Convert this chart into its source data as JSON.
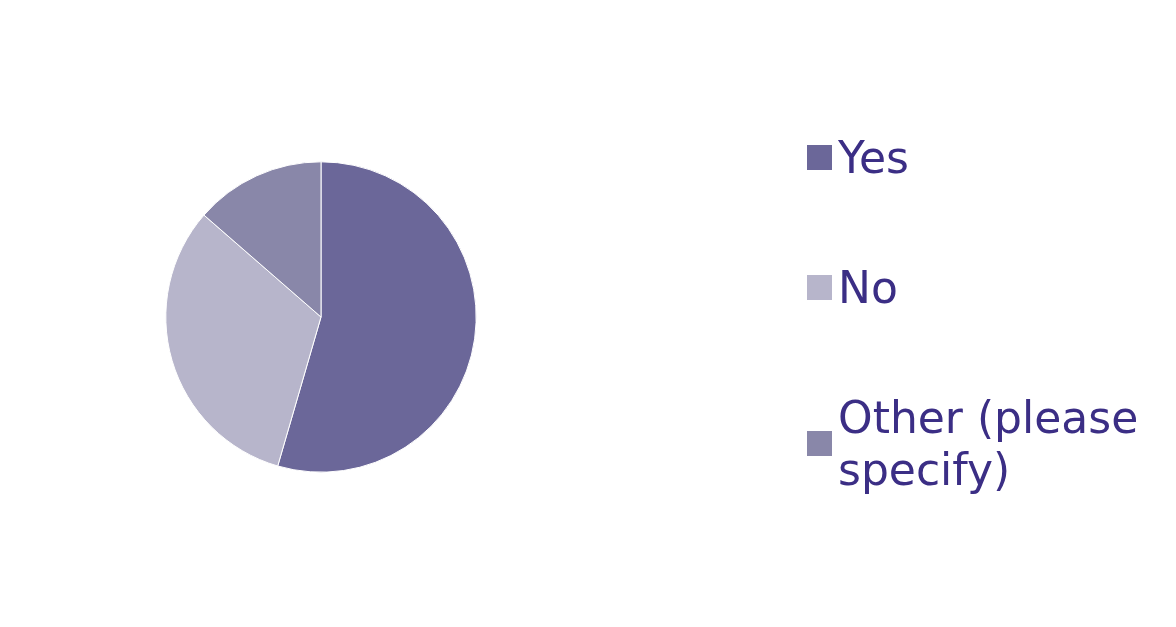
{
  "chart_data": {
    "type": "pie",
    "categories": [
      "Yes",
      "No",
      "Other (please specify)"
    ],
    "values": [
      54.5,
      31.9,
      13.6
    ],
    "colors": [
      "#6b6799",
      "#b7b5cb",
      "#8987a9"
    ],
    "legend": "right"
  }
}
